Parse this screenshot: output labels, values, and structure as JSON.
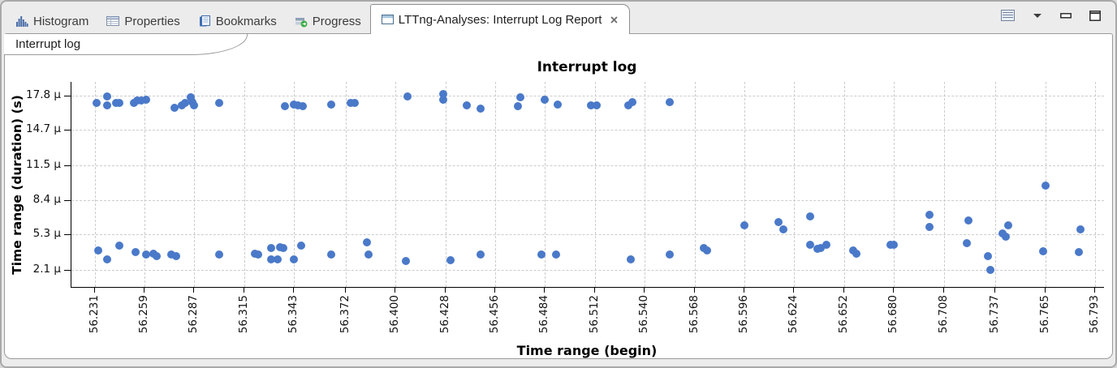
{
  "tab_bar": {
    "tabs": [
      {
        "label": "Histogram",
        "icon": "histogram-icon"
      },
      {
        "label": "Properties",
        "icon": "properties-icon"
      },
      {
        "label": "Bookmarks",
        "icon": "bookmarks-icon"
      },
      {
        "label": "Progress",
        "icon": "progress-icon"
      }
    ],
    "active_tab": {
      "label": "LTTng-Analyses: Interrupt Log Report",
      "icon": "window-icon",
      "close_icon": "close-icon"
    }
  },
  "view_toolbar": {
    "icons": [
      "view-list-icon",
      "view-menu-arrow-icon",
      "minimize-icon",
      "maximize-icon"
    ]
  },
  "subtab": {
    "label": "Interrupt log"
  },
  "colors": {
    "point": "#4a79c9",
    "grid": "#cccccc",
    "axis": "#000000",
    "panel_border": "#9a9a9a",
    "background": "#ececec"
  },
  "chart_data": {
    "type": "scatter",
    "title": "Interrupt log",
    "xlabel": "Time range (begin)",
    "ylabel": "Time range (duration) (s)",
    "grid": true,
    "legend_position": "none",
    "x_unit": "s",
    "y_unit": "µs",
    "xlim": [
      56.218,
      56.798
    ],
    "ylim_us": [
      0.6,
      19.0
    ],
    "x_ticks": [
      "56.231",
      "56.259",
      "56.287",
      "56.315",
      "56.343",
      "56.372",
      "56.400",
      "56.428",
      "56.456",
      "56.484",
      "56.512",
      "56.540",
      "56.568",
      "56.596",
      "56.624",
      "56.652",
      "56.680",
      "56.708",
      "56.737",
      "56.765",
      "56.793"
    ],
    "y_ticks": [
      {
        "label": "17.8 µ",
        "value": 17.8
      },
      {
        "label": "14.7 µ",
        "value": 14.7
      },
      {
        "label": "11.5 µ",
        "value": 11.5
      },
      {
        "label": "8.4 µ",
        "value": 8.4
      },
      {
        "label": "5.3 µ",
        "value": 5.3
      },
      {
        "label": "2.1 µ",
        "value": 2.1
      }
    ],
    "points": [
      [
        56.232,
        17.1
      ],
      [
        56.238,
        17.7
      ],
      [
        56.238,
        16.9
      ],
      [
        56.243,
        17.1
      ],
      [
        56.245,
        17.1
      ],
      [
        56.253,
        17.1
      ],
      [
        56.255,
        17.3
      ],
      [
        56.257,
        17.3
      ],
      [
        56.26,
        17.4
      ],
      [
        56.276,
        16.7
      ],
      [
        56.28,
        16.9
      ],
      [
        56.282,
        17.1
      ],
      [
        56.285,
        17.6
      ],
      [
        56.286,
        17.2
      ],
      [
        56.287,
        16.9
      ],
      [
        56.301,
        17.1
      ],
      [
        56.338,
        16.8
      ],
      [
        56.343,
        17.0
      ],
      [
        56.345,
        16.9
      ],
      [
        56.348,
        16.8
      ],
      [
        56.364,
        17.0
      ],
      [
        56.375,
        17.1
      ],
      [
        56.377,
        17.1
      ],
      [
        56.407,
        17.7
      ],
      [
        56.427,
        17.9
      ],
      [
        56.427,
        17.4
      ],
      [
        56.44,
        16.9
      ],
      [
        56.448,
        16.6
      ],
      [
        56.47,
        17.6
      ],
      [
        56.469,
        16.8
      ],
      [
        56.484,
        17.4
      ],
      [
        56.491,
        17.0
      ],
      [
        56.51,
        16.9
      ],
      [
        56.513,
        16.9
      ],
      [
        56.531,
        16.9
      ],
      [
        56.533,
        17.2
      ],
      [
        56.554,
        17.2
      ],
      [
        56.233,
        3.9
      ],
      [
        56.238,
        3.1
      ],
      [
        56.245,
        4.3
      ],
      [
        56.254,
        3.7
      ],
      [
        56.26,
        3.5
      ],
      [
        56.264,
        3.6
      ],
      [
        56.266,
        3.4
      ],
      [
        56.274,
        3.5
      ],
      [
        56.277,
        3.4
      ],
      [
        56.301,
        3.5
      ],
      [
        56.321,
        3.6
      ],
      [
        56.323,
        3.5
      ],
      [
        56.33,
        4.1
      ],
      [
        56.33,
        3.1
      ],
      [
        56.334,
        3.1
      ],
      [
        56.335,
        4.2
      ],
      [
        56.337,
        4.1
      ],
      [
        56.343,
        3.1
      ],
      [
        56.347,
        4.3
      ],
      [
        56.364,
        3.5
      ],
      [
        56.384,
        4.6
      ],
      [
        56.385,
        3.5
      ],
      [
        56.406,
        2.9
      ],
      [
        56.431,
        3.0
      ],
      [
        56.448,
        3.5
      ],
      [
        56.482,
        3.5
      ],
      [
        56.49,
        3.5
      ],
      [
        56.532,
        3.1
      ],
      [
        56.554,
        3.5
      ],
      [
        56.573,
        4.1
      ],
      [
        56.575,
        3.9
      ],
      [
        56.596,
        6.1
      ],
      [
        56.615,
        6.4
      ],
      [
        56.618,
        5.8
      ],
      [
        56.633,
        6.9
      ],
      [
        56.633,
        4.4
      ],
      [
        56.637,
        4.0
      ],
      [
        56.639,
        4.1
      ],
      [
        56.642,
        4.4
      ],
      [
        56.657,
        3.9
      ],
      [
        56.659,
        3.6
      ],
      [
        56.678,
        4.4
      ],
      [
        56.68,
        4.4
      ],
      [
        56.7,
        7.1
      ],
      [
        56.7,
        6.0
      ],
      [
        56.722,
        6.6
      ],
      [
        56.721,
        4.5
      ],
      [
        56.733,
        3.4
      ],
      [
        56.734,
        2.1
      ],
      [
        56.741,
        5.4
      ],
      [
        56.743,
        5.1
      ],
      [
        56.744,
        6.1
      ],
      [
        56.764,
        3.8
      ],
      [
        56.765,
        9.7
      ],
      [
        56.785,
        5.8
      ],
      [
        56.784,
        3.7
      ]
    ]
  }
}
